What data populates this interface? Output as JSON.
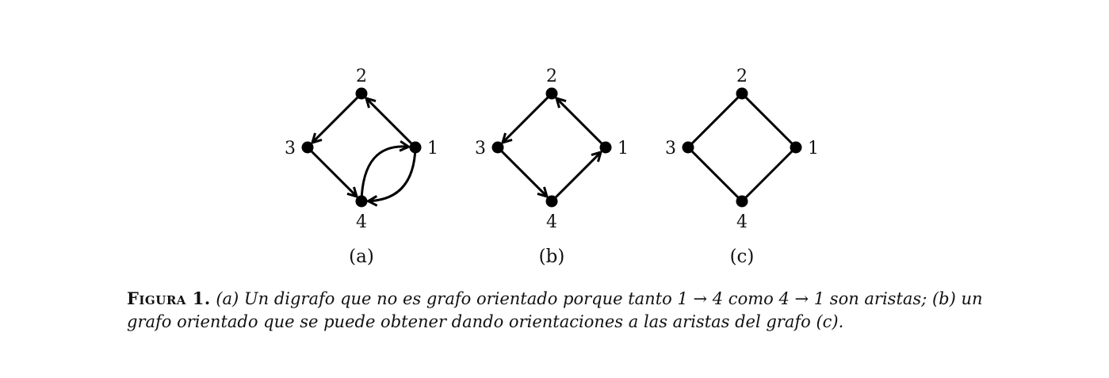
{
  "figure": {
    "graphs": [
      {
        "id": "a",
        "sublabel": "(a)",
        "nodes": [
          {
            "id": "1",
            "label": "1"
          },
          {
            "id": "2",
            "label": "2"
          },
          {
            "id": "3",
            "label": "3"
          },
          {
            "id": "4",
            "label": "4"
          }
        ],
        "edges": [
          {
            "from": "1",
            "to": "2",
            "directed": true,
            "curve": "straight"
          },
          {
            "from": "2",
            "to": "3",
            "directed": true,
            "curve": "straight"
          },
          {
            "from": "3",
            "to": "4",
            "directed": true,
            "curve": "straight"
          },
          {
            "from": "1",
            "to": "4",
            "directed": true,
            "curve": "bend-lower"
          },
          {
            "from": "4",
            "to": "1",
            "directed": true,
            "curve": "bend-upper"
          }
        ]
      },
      {
        "id": "b",
        "sublabel": "(b)",
        "nodes": [
          {
            "id": "1",
            "label": "1"
          },
          {
            "id": "2",
            "label": "2"
          },
          {
            "id": "3",
            "label": "3"
          },
          {
            "id": "4",
            "label": "4"
          }
        ],
        "edges": [
          {
            "from": "1",
            "to": "2",
            "directed": true,
            "curve": "straight"
          },
          {
            "from": "2",
            "to": "3",
            "directed": true,
            "curve": "straight"
          },
          {
            "from": "3",
            "to": "4",
            "directed": true,
            "curve": "straight"
          },
          {
            "from": "4",
            "to": "1",
            "directed": true,
            "curve": "straight"
          }
        ]
      },
      {
        "id": "c",
        "sublabel": "(c)",
        "nodes": [
          {
            "id": "1",
            "label": "1"
          },
          {
            "id": "2",
            "label": "2"
          },
          {
            "id": "3",
            "label": "3"
          },
          {
            "id": "4",
            "label": "4"
          }
        ],
        "edges": [
          {
            "from": "1",
            "to": "2",
            "directed": false,
            "curve": "straight"
          },
          {
            "from": "2",
            "to": "3",
            "directed": false,
            "curve": "straight"
          },
          {
            "from": "3",
            "to": "4",
            "directed": false,
            "curve": "straight"
          },
          {
            "from": "4",
            "to": "1",
            "directed": false,
            "curve": "straight"
          }
        ]
      }
    ]
  },
  "caption": {
    "label": "Figura 1.",
    "text": "(a) Un digrafo que no es grafo orientado porque tanto 1 → 4 como 4 → 1 son aristas; (b) un grafo orientado que se puede obtener dando orientaciones a las aristas del grafo (c)."
  }
}
